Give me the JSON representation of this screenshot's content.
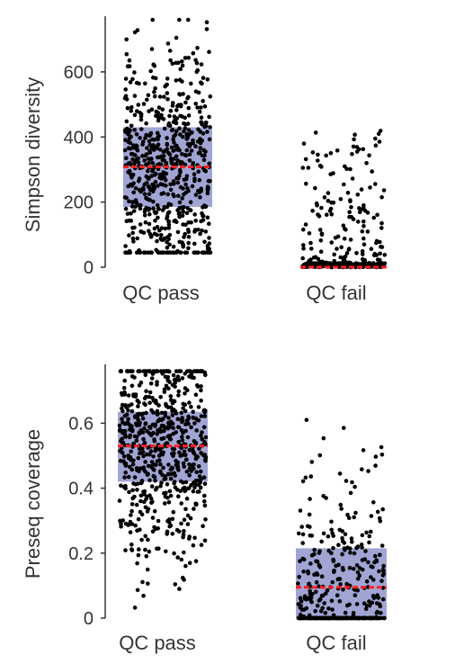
{
  "chart_data": [
    {
      "type": "scatter",
      "subtype": "jitter-strip-with-box",
      "ylabel": "Simpson diversity",
      "ylim": [
        0,
        760
      ],
      "yticks": [
        0,
        200,
        400,
        600
      ],
      "categories": [
        "QC pass",
        "QC fail"
      ],
      "groups": [
        {
          "category": "QC pass",
          "box": {
            "q1": 185,
            "median": 308,
            "q3": 430
          },
          "n_points": 650,
          "range": [
            45,
            760
          ]
        },
        {
          "category": "QC fail",
          "box": {
            "q1": 0,
            "median": 0,
            "q3": 0
          },
          "n_points": 420,
          "range": [
            0,
            430
          ]
        }
      ],
      "grid": false,
      "colors": {
        "points": "#000000",
        "box": "#9095cc",
        "median": "#ff2020",
        "axis": "#333333"
      }
    },
    {
      "type": "scatter",
      "subtype": "jitter-strip-with-box",
      "ylabel": "Preseq coverage",
      "ylim": [
        0,
        0.77
      ],
      "yticks": [
        0,
        0.2,
        0.4,
        0.6
      ],
      "categories": [
        "QC pass",
        "QC fail"
      ],
      "groups": [
        {
          "category": "QC pass",
          "box": {
            "q1": 0.42,
            "median": 0.53,
            "q3": 0.635
          },
          "n_points": 650,
          "range": [
            0,
            0.76
          ]
        },
        {
          "category": "QC fail",
          "box": {
            "q1": 0.0,
            "median": 0.095,
            "q3": 0.215
          },
          "n_points": 420,
          "range": [
            0,
            0.62
          ]
        }
      ],
      "grid": false,
      "colors": {
        "points": "#000000",
        "box": "#9095cc",
        "median": "#ff2020",
        "axis": "#333333"
      }
    }
  ]
}
